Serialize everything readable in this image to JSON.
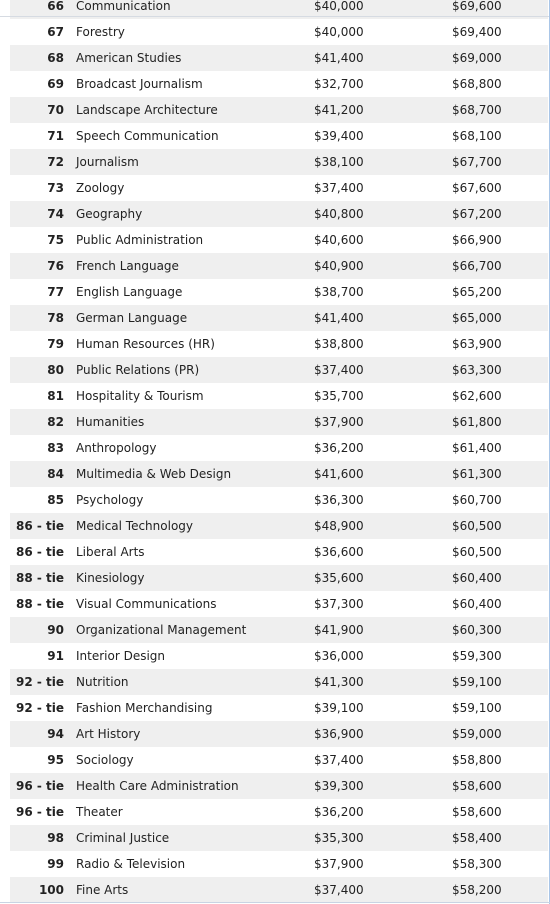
{
  "rows": [
    {
      "rank": "66",
      "major": "Communication",
      "starting": "$40,000",
      "mid_career": "$69,600"
    },
    {
      "rank": "67",
      "major": "Forestry",
      "starting": "$40,000",
      "mid_career": "$69,400"
    },
    {
      "rank": "68",
      "major": "American Studies",
      "starting": "$41,400",
      "mid_career": "$69,000"
    },
    {
      "rank": "69",
      "major": "Broadcast Journalism",
      "starting": "$32,700",
      "mid_career": "$68,800"
    },
    {
      "rank": "70",
      "major": "Landscape Architecture",
      "starting": "$41,200",
      "mid_career": "$68,700"
    },
    {
      "rank": "71",
      "major": "Speech Communication",
      "starting": "$39,400",
      "mid_career": "$68,100"
    },
    {
      "rank": "72",
      "major": "Journalism",
      "starting": "$38,100",
      "mid_career": "$67,700"
    },
    {
      "rank": "73",
      "major": "Zoology",
      "starting": "$37,400",
      "mid_career": "$67,600"
    },
    {
      "rank": "74",
      "major": "Geography",
      "starting": "$40,800",
      "mid_career": "$67,200"
    },
    {
      "rank": "75",
      "major": "Public Administration",
      "starting": "$40,600",
      "mid_career": "$66,900"
    },
    {
      "rank": "76",
      "major": "French Language",
      "starting": "$40,900",
      "mid_career": "$66,700"
    },
    {
      "rank": "77",
      "major": "English Language",
      "starting": "$38,700",
      "mid_career": "$65,200"
    },
    {
      "rank": "78",
      "major": "German Language",
      "starting": "$41,400",
      "mid_career": "$65,000"
    },
    {
      "rank": "79",
      "major": "Human Resources (HR)",
      "starting": "$38,800",
      "mid_career": "$63,900"
    },
    {
      "rank": "80",
      "major": "Public Relations (PR)",
      "starting": "$37,400",
      "mid_career": "$63,300"
    },
    {
      "rank": "81",
      "major": "Hospitality & Tourism",
      "starting": "$35,700",
      "mid_career": "$62,600"
    },
    {
      "rank": "82",
      "major": "Humanities",
      "starting": "$37,900",
      "mid_career": "$61,800"
    },
    {
      "rank": "83",
      "major": "Anthropology",
      "starting": "$36,200",
      "mid_career": "$61,400"
    },
    {
      "rank": "84",
      "major": "Multimedia & Web Design",
      "starting": "$41,600",
      "mid_career": "$61,300"
    },
    {
      "rank": "85",
      "major": "Psychology",
      "starting": "$36,300",
      "mid_career": "$60,700"
    },
    {
      "rank": "86 - tie",
      "major": "Medical Technology",
      "starting": "$48,900",
      "mid_career": "$60,500"
    },
    {
      "rank": "86 - tie",
      "major": "Liberal Arts",
      "starting": "$36,600",
      "mid_career": "$60,500"
    },
    {
      "rank": "88 - tie",
      "major": "Kinesiology",
      "starting": "$35,600",
      "mid_career": "$60,400"
    },
    {
      "rank": "88 - tie",
      "major": "Visual Communications",
      "starting": "$37,300",
      "mid_career": "$60,400"
    },
    {
      "rank": "90",
      "major": "Organizational Management",
      "starting": "$41,900",
      "mid_career": "$60,300"
    },
    {
      "rank": "91",
      "major": "Interior Design",
      "starting": "$36,000",
      "mid_career": "$59,300"
    },
    {
      "rank": "92 - tie",
      "major": "Nutrition",
      "starting": "$41,300",
      "mid_career": "$59,100"
    },
    {
      "rank": "92 - tie",
      "major": "Fashion Merchandising",
      "starting": "$39,100",
      "mid_career": "$59,100"
    },
    {
      "rank": "94",
      "major": "Art History",
      "starting": "$36,900",
      "mid_career": "$59,000"
    },
    {
      "rank": "95",
      "major": "Sociology",
      "starting": "$37,400",
      "mid_career": "$58,800"
    },
    {
      "rank": "96 - tie",
      "major": "Health Care Administration",
      "starting": "$39,300",
      "mid_career": "$58,600"
    },
    {
      "rank": "96 - tie",
      "major": "Theater",
      "starting": "$36,200",
      "mid_career": "$58,600"
    },
    {
      "rank": "98",
      "major": "Criminal Justice",
      "starting": "$35,300",
      "mid_career": "$58,400"
    },
    {
      "rank": "99",
      "major": "Radio & Television",
      "starting": "$37,900",
      "mid_career": "$58,300"
    },
    {
      "rank": "100",
      "major": "Fine Arts",
      "starting": "$37,400",
      "mid_career": "$58,200"
    }
  ]
}
